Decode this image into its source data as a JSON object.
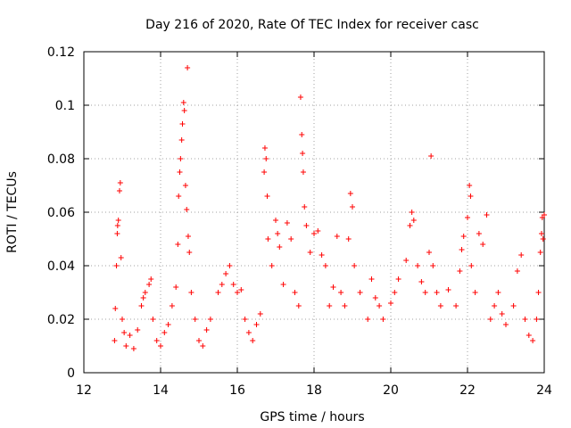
{
  "chart_data": {
    "type": "scatter",
    "title": "Day 216 of 2020, Rate Of TEC Index for receiver casc",
    "xlabel": "GPS time / hours",
    "ylabel": "ROTI / TECUs",
    "xlim": [
      12,
      24
    ],
    "ylim": [
      0,
      0.12
    ],
    "xticks": [
      12,
      14,
      16,
      18,
      20,
      22,
      24
    ],
    "xtick_labels": [
      "12",
      "14",
      "16",
      "18",
      "20",
      "22",
      "24"
    ],
    "yticks": [
      0,
      0.02,
      0.04,
      0.06,
      0.08,
      0.1,
      0.12
    ],
    "ytick_labels": [
      "0",
      "0.02",
      "0.04",
      "0.06",
      "0.08",
      "0.1",
      "0.12"
    ],
    "grid": true,
    "marker": "+",
    "marker_color": "#ff0000",
    "series": [
      {
        "name": "ROTI",
        "points": [
          [
            12.8,
            0.012
          ],
          [
            12.82,
            0.024
          ],
          [
            12.85,
            0.04
          ],
          [
            12.87,
            0.052
          ],
          [
            12.88,
            0.055
          ],
          [
            12.9,
            0.057
          ],
          [
            12.93,
            0.068
          ],
          [
            12.95,
            0.071
          ],
          [
            12.97,
            0.043
          ],
          [
            13.0,
            0.02
          ],
          [
            13.05,
            0.015
          ],
          [
            13.1,
            0.01
          ],
          [
            13.2,
            0.014
          ],
          [
            13.3,
            0.009
          ],
          [
            13.4,
            0.016
          ],
          [
            13.5,
            0.025
          ],
          [
            13.55,
            0.028
          ],
          [
            13.6,
            0.03
          ],
          [
            13.7,
            0.033
          ],
          [
            13.75,
            0.035
          ],
          [
            13.8,
            0.02
          ],
          [
            13.9,
            0.012
          ],
          [
            14.0,
            0.01
          ],
          [
            14.1,
            0.015
          ],
          [
            14.2,
            0.018
          ],
          [
            14.3,
            0.025
          ],
          [
            14.4,
            0.032
          ],
          [
            14.45,
            0.048
          ],
          [
            14.47,
            0.066
          ],
          [
            14.5,
            0.075
          ],
          [
            14.52,
            0.08
          ],
          [
            14.55,
            0.087
          ],
          [
            14.57,
            0.093
          ],
          [
            14.6,
            0.101
          ],
          [
            14.62,
            0.098
          ],
          [
            14.65,
            0.07
          ],
          [
            14.68,
            0.061
          ],
          [
            14.7,
            0.114
          ],
          [
            14.72,
            0.051
          ],
          [
            14.75,
            0.045
          ],
          [
            14.8,
            0.03
          ],
          [
            14.9,
            0.02
          ],
          [
            15.0,
            0.012
          ],
          [
            15.1,
            0.01
          ],
          [
            15.2,
            0.016
          ],
          [
            15.3,
            0.02
          ],
          [
            15.5,
            0.03
          ],
          [
            15.6,
            0.033
          ],
          [
            15.7,
            0.037
          ],
          [
            15.8,
            0.04
          ],
          [
            15.9,
            0.033
          ],
          [
            16.0,
            0.03
          ],
          [
            16.1,
            0.031
          ],
          [
            16.2,
            0.02
          ],
          [
            16.3,
            0.015
          ],
          [
            16.4,
            0.012
          ],
          [
            16.5,
            0.018
          ],
          [
            16.6,
            0.022
          ],
          [
            16.7,
            0.075
          ],
          [
            16.72,
            0.084
          ],
          [
            16.75,
            0.08
          ],
          [
            16.78,
            0.066
          ],
          [
            16.8,
            0.05
          ],
          [
            16.9,
            0.04
          ],
          [
            17.0,
            0.057
          ],
          [
            17.05,
            0.052
          ],
          [
            17.1,
            0.047
          ],
          [
            17.2,
            0.033
          ],
          [
            17.3,
            0.056
          ],
          [
            17.4,
            0.05
          ],
          [
            17.5,
            0.03
          ],
          [
            17.6,
            0.025
          ],
          [
            17.65,
            0.103
          ],
          [
            17.68,
            0.089
          ],
          [
            17.7,
            0.082
          ],
          [
            17.72,
            0.075
          ],
          [
            17.75,
            0.062
          ],
          [
            17.8,
            0.055
          ],
          [
            17.9,
            0.045
          ],
          [
            18.0,
            0.052
          ],
          [
            18.1,
            0.053
          ],
          [
            18.2,
            0.044
          ],
          [
            18.3,
            0.04
          ],
          [
            18.4,
            0.025
          ],
          [
            18.5,
            0.032
          ],
          [
            18.6,
            0.051
          ],
          [
            18.7,
            0.03
          ],
          [
            18.8,
            0.025
          ],
          [
            18.9,
            0.05
          ],
          [
            18.95,
            0.067
          ],
          [
            19.0,
            0.062
          ],
          [
            19.05,
            0.04
          ],
          [
            19.2,
            0.03
          ],
          [
            19.4,
            0.02
          ],
          [
            19.5,
            0.035
          ],
          [
            19.6,
            0.028
          ],
          [
            19.7,
            0.025
          ],
          [
            19.8,
            0.02
          ],
          [
            20.0,
            0.026
          ],
          [
            20.1,
            0.03
          ],
          [
            20.2,
            0.035
          ],
          [
            20.4,
            0.042
          ],
          [
            20.5,
            0.055
          ],
          [
            20.55,
            0.06
          ],
          [
            20.6,
            0.057
          ],
          [
            20.7,
            0.04
          ],
          [
            20.8,
            0.034
          ],
          [
            20.9,
            0.03
          ],
          [
            21.0,
            0.045
          ],
          [
            21.05,
            0.081
          ],
          [
            21.1,
            0.04
          ],
          [
            21.2,
            0.03
          ],
          [
            21.3,
            0.025
          ],
          [
            21.5,
            0.031
          ],
          [
            21.7,
            0.025
          ],
          [
            21.8,
            0.038
          ],
          [
            21.85,
            0.046
          ],
          [
            21.9,
            0.051
          ],
          [
            22.0,
            0.058
          ],
          [
            22.05,
            0.07
          ],
          [
            22.08,
            0.066
          ],
          [
            22.1,
            0.04
          ],
          [
            22.2,
            0.03
          ],
          [
            22.3,
            0.052
          ],
          [
            22.4,
            0.048
          ],
          [
            22.5,
            0.059
          ],
          [
            22.6,
            0.02
          ],
          [
            22.7,
            0.025
          ],
          [
            22.8,
            0.03
          ],
          [
            22.9,
            0.022
          ],
          [
            23.0,
            0.018
          ],
          [
            23.2,
            0.025
          ],
          [
            23.3,
            0.038
          ],
          [
            23.4,
            0.044
          ],
          [
            23.5,
            0.02
          ],
          [
            23.6,
            0.014
          ],
          [
            23.7,
            0.012
          ],
          [
            23.8,
            0.02
          ],
          [
            23.85,
            0.03
          ],
          [
            23.9,
            0.045
          ],
          [
            23.93,
            0.052
          ],
          [
            23.95,
            0.058
          ],
          [
            23.97,
            0.05
          ],
          [
            24.0,
            0.059
          ]
        ]
      }
    ]
  }
}
